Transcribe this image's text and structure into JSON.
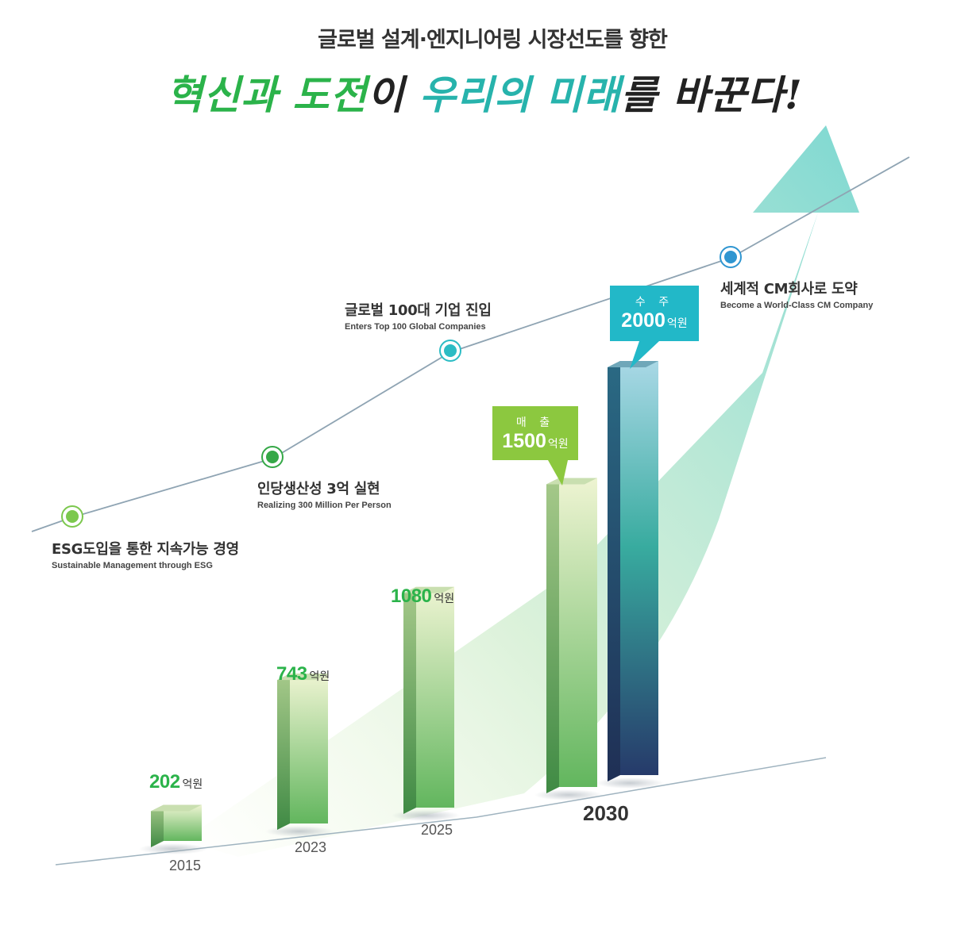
{
  "header": {
    "subtitle": "글로벌 설계·엔지니어링 시장선도를 향한",
    "headline_parts": [
      "혁신과",
      " ",
      "도전",
      "이 ",
      "우리의",
      " ",
      "미래",
      "를 바꾼다!"
    ]
  },
  "milestones": [
    {
      "label": "ESG도입을 통한 지속가능 경영",
      "sub": "Sustainable Management through ESG",
      "color": "#7cc84e"
    },
    {
      "label": "인당생산성 3억 실현",
      "sub": "Realizing 300 Million Per Person",
      "color": "#35a847"
    },
    {
      "label": "글로벌 100대 기업 진입",
      "sub": "Enters Top 100 Global Companies",
      "color": "#2bbcc4"
    },
    {
      "label": "세계적 CM회사로 도약",
      "sub": "Become a World-Class CM Company",
      "color": "#2f96d1"
    }
  ],
  "bubbles": [
    {
      "title": "매 출",
      "value": "1500",
      "unit": "억원",
      "color": "#8cc83f"
    },
    {
      "title": "수 주",
      "value": "2000",
      "unit": "억원",
      "color": "#22b8c8"
    }
  ],
  "chart_data": {
    "type": "bar",
    "categories": [
      "2015",
      "2023",
      "2025",
      "2030"
    ],
    "series": [
      {
        "name": "매출",
        "values": [
          202,
          743,
          1080,
          1500
        ]
      },
      {
        "name": "수주",
        "values": [
          null,
          null,
          null,
          2000
        ]
      }
    ],
    "value_labels": [
      "202",
      "743",
      "1080"
    ],
    "unit": "억원",
    "colors": {
      "sales_top": "#e0edc8",
      "sales_bottom": "#5cb85a",
      "orders_top": "#9fd3e0",
      "orders_mid": "#3aae9f",
      "orders_bottom": "#273f6e",
      "arrow": "#7ed8d2"
    }
  }
}
